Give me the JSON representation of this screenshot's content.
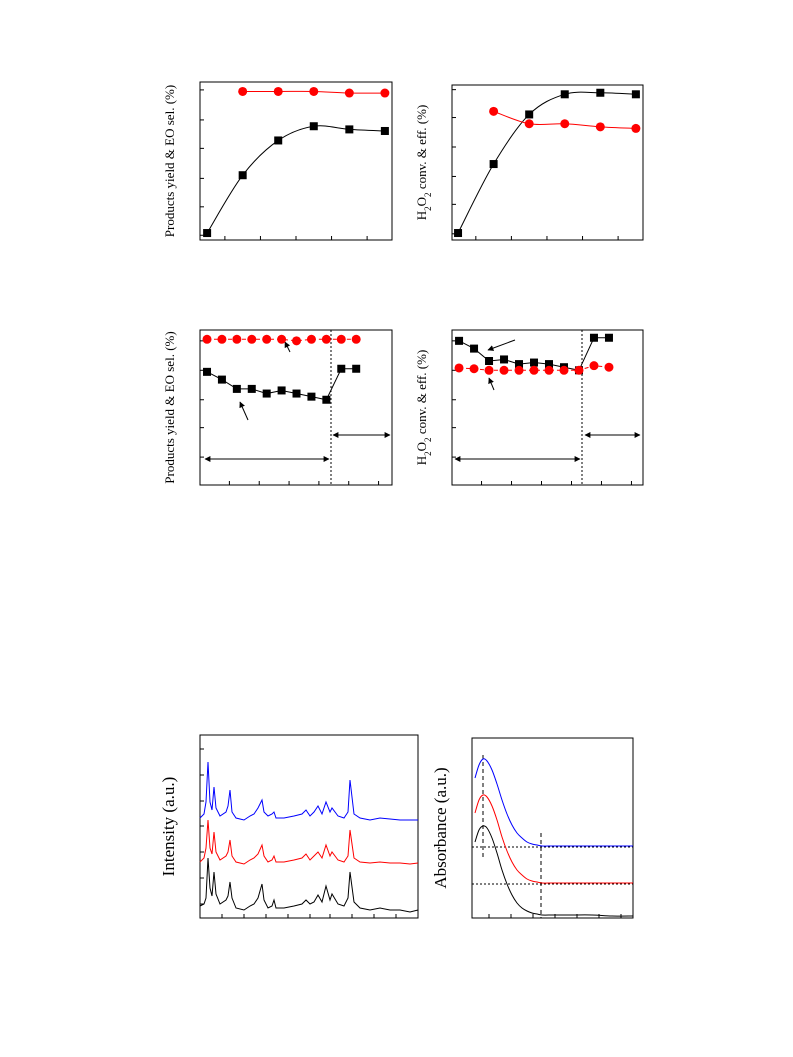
{
  "chart_data": [
    {
      "type": "line",
      "y_label": "Products yield & EO sel. (%)",
      "x": [
        0,
        1,
        2,
        3,
        4,
        5
      ],
      "xlim": [
        -0.2,
        5.2
      ],
      "ylim": [
        0,
        100
      ],
      "xticks": [
        0.5,
        1.5,
        2.5,
        3.5,
        4.5
      ],
      "yticks": [
        3,
        21,
        39,
        58,
        76,
        95
      ],
      "smooth": true,
      "series": [
        {
          "color": "#000000",
          "marker": "square",
          "values": [
            4.4,
            41,
            63,
            72,
            70,
            69
          ]
        },
        {
          "color": "#ff0000",
          "marker": "circle",
          "values": [
            null,
            94,
            94,
            94,
            93,
            93
          ]
        }
      ]
    },
    {
      "type": "line",
      "y_label": "H2O2 conv. & eff. (%)",
      "x": [
        0,
        1,
        2,
        3,
        4,
        5
      ],
      "xlim": [
        -0.17,
        5.2
      ],
      "ylim": [
        0,
        100
      ],
      "xticks": [
        0.5,
        1.5,
        2.5,
        3.5,
        4.5
      ],
      "yticks": [
        4,
        23,
        41,
        60,
        79,
        97
      ],
      "smooth": true,
      "series": [
        {
          "color": "#000000",
          "marker": "square",
          "values": [
            4.5,
            49,
            81,
            94,
            95,
            94
          ]
        },
        {
          "color": "#ff0000",
          "marker": "circle",
          "values": [
            null,
            83,
            75,
            75,
            73,
            72
          ]
        }
      ]
    },
    {
      "type": "line",
      "y_label": "Products yield & EO sel. (%)",
      "x": [
        0,
        1,
        2,
        3,
        4,
        5,
        6,
        7,
        8,
        9,
        10
      ],
      "xlim": [
        -0.47,
        12.4
      ],
      "ylim": [
        0,
        100
      ],
      "xticks": [
        1.5,
        3.5,
        5.5,
        7.5,
        9.5,
        11.5
      ],
      "yticks": [
        18,
        37,
        55,
        74,
        93
      ],
      "smooth": false,
      "series": [
        {
          "color": "#000000",
          "marker": "square",
          "line_style": "solid",
          "values": [
            73,
            68,
            62,
            62,
            59,
            61,
            59,
            57,
            55,
            75,
            75
          ]
        },
        {
          "color": "#ff0000",
          "marker": "circle",
          "line_style": "dashed",
          "values": [
            94,
            94,
            94,
            94,
            94,
            94,
            93,
            94,
            94,
            94,
            94
          ]
        }
      ]
    },
    {
      "type": "line",
      "y_label": "H2O2 conv. & eff. (%)",
      "x": [
        0,
        1,
        2,
        3,
        4,
        5,
        6,
        7,
        8,
        9,
        10
      ],
      "xlim": [
        -0.47,
        12.27
      ],
      "ylim": [
        0,
        100
      ],
      "xticks": [
        1.5,
        3.5,
        5.5,
        7.5,
        9.5,
        11.5
      ],
      "yticks": [
        18,
        37,
        55,
        74,
        93
      ],
      "smooth": false,
      "series": [
        {
          "color": "#000000",
          "marker": "square",
          "line_style": "solid",
          "values": [
            93,
            88,
            80,
            81,
            78,
            79,
            78,
            76,
            74,
            95,
            95
          ]
        },
        {
          "color": "#ff0000",
          "marker": "circle",
          "line_style": "dashed",
          "values": [
            75.5,
            75,
            74,
            74,
            74,
            74,
            74,
            74,
            74,
            77,
            76
          ]
        }
      ]
    },
    {
      "type": "line",
      "y_label": "Intensity (a.u.)",
      "xlim": [
        0,
        109
      ],
      "ylim": [
        0,
        183
      ],
      "smooth": false,
      "x": [
        0,
        2,
        3,
        4,
        5,
        6,
        7,
        8,
        10,
        13,
        14,
        15,
        16,
        18,
        22,
        25,
        27,
        29,
        31,
        32,
        34,
        36,
        37,
        38,
        42,
        47,
        51,
        53,
        55,
        57,
        59,
        61,
        63,
        65,
        66,
        69,
        72,
        74,
        75,
        77,
        80,
        85,
        90,
        95,
        100,
        105,
        109
      ],
      "xticks": [
        11,
        22,
        33,
        44,
        55,
        65,
        76,
        87,
        98
      ],
      "yticks": [
        14,
        40,
        66,
        92,
        117,
        143,
        169
      ],
      "series": [
        {
          "color": "#000000",
          "values": [
            12,
            14,
            20,
            60,
            30,
            22,
            46,
            24,
            14,
            18,
            22,
            36,
            20,
            10,
            8,
            12,
            14,
            20,
            34,
            18,
            10,
            12,
            18,
            10,
            10,
            12,
            14,
            18,
            14,
            16,
            23,
            16,
            32,
            18,
            24,
            14,
            12,
            20,
            46,
            16,
            10,
            8,
            10,
            8,
            8,
            6,
            8
          ]
        },
        {
          "color": "#ff0000",
          "values": [
            56,
            60,
            70,
            98,
            70,
            64,
            86,
            66,
            58,
            62,
            66,
            78,
            62,
            56,
            54,
            58,
            60,
            64,
            73,
            62,
            56,
            58,
            62,
            56,
            56,
            58,
            60,
            64,
            58,
            62,
            66,
            60,
            73,
            62,
            66,
            58,
            56,
            62,
            88,
            60,
            56,
            55,
            56,
            55,
            55,
            54,
            55
          ]
        },
        {
          "color": "#0000ff",
          "values": [
            100,
            104,
            116,
            156,
            116,
            108,
            131,
            110,
            102,
            106,
            112,
            128,
            106,
            100,
            98,
            102,
            104,
            110,
            118,
            106,
            102,
            104,
            106,
            100,
            100,
            102,
            104,
            108,
            102,
            106,
            112,
            104,
            116,
            106,
            110,
            102,
            100,
            106,
            138,
            104,
            100,
            98,
            100,
            99,
            98,
            98,
            98
          ]
        }
      ]
    },
    {
      "type": "line",
      "y_label": "Absorbance (a.u.)",
      "xlim": [
        0,
        161
      ],
      "ylim": [
        0,
        180
      ],
      "smooth": true,
      "x": [
        3,
        7,
        11,
        15,
        20,
        25,
        30,
        35,
        40,
        45,
        50,
        55,
        60,
        65,
        70,
        80,
        90,
        100,
        120,
        140,
        161
      ],
      "xticks": [
        17,
        39,
        61,
        83,
        105,
        127,
        149
      ],
      "series": [
        {
          "color": "#000000",
          "values": [
            76,
            88,
            92,
            90,
            80,
            65,
            48,
            34,
            23,
            15,
            10,
            7,
            5,
            4,
            3,
            3,
            3,
            3,
            3,
            2,
            2
          ]
        },
        {
          "color": "#ff0000",
          "values": [
            105,
            118,
            123,
            121,
            112,
            98,
            81,
            67,
            56,
            48,
            43,
            39,
            37,
            36,
            35,
            35,
            35,
            35,
            35,
            35,
            35
          ]
        },
        {
          "color": "#0000ff",
          "values": [
            140,
            153,
            159,
            157,
            148,
            134,
            118,
            104,
            93,
            85,
            80,
            76,
            74,
            73,
            72,
            72,
            72,
            72,
            72,
            72,
            72
          ]
        }
      ]
    }
  ]
}
